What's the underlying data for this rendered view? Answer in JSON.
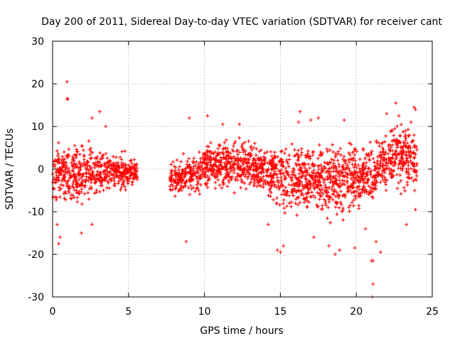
{
  "chart_data": {
    "type": "scatter",
    "title": "Day 200 of 2011, Sidereal Day-to-day VTEC variation (SDTVAR) for receiver cant",
    "xlabel": "GPS time / hours",
    "ylabel": "SDTVAR / TECUs",
    "xlim": [
      0,
      25
    ],
    "ylim": [
      -30,
      30
    ],
    "xticks": [
      0,
      5,
      10,
      15,
      20,
      25
    ],
    "yticks": [
      -30,
      -20,
      -10,
      0,
      10,
      20,
      30
    ],
    "xtick_labels": [
      "0",
      "5",
      "10",
      "15",
      "20",
      "25"
    ],
    "ytick_labels": [
      "-30",
      "-20",
      "-10",
      "0",
      "10",
      "20",
      "30"
    ],
    "grid": true,
    "marker": "+",
    "color": "#ff0000",
    "series": [
      {
        "name": "SDTVAR",
        "data_gap_hours": [
          5.6,
          7.7
        ],
        "envelope": [
          {
            "x": 0.0,
            "low": -10,
            "high": 8,
            "center": -1
          },
          {
            "x": 0.5,
            "low": -9,
            "high": 7,
            "center": -1
          },
          {
            "x": 1.0,
            "low": -9,
            "high": 7,
            "center": -1
          },
          {
            "x": 1.5,
            "low": -9,
            "high": 7,
            "center": -1
          },
          {
            "x": 2.0,
            "low": -9,
            "high": 7,
            "center": -1
          },
          {
            "x": 2.5,
            "low": -8,
            "high": 7,
            "center": -1
          },
          {
            "x": 3.0,
            "low": -7,
            "high": 7,
            "center": -1
          },
          {
            "x": 3.5,
            "low": -7,
            "high": 6,
            "center": -1
          },
          {
            "x": 4.0,
            "low": -6,
            "high": 5,
            "center": -1
          },
          {
            "x": 4.5,
            "low": -6,
            "high": 4,
            "center": -1
          },
          {
            "x": 5.0,
            "low": -5,
            "high": 4,
            "center": -1
          },
          {
            "x": 5.5,
            "low": -4,
            "high": 4,
            "center": -1
          },
          {
            "x": 7.7,
            "low": -7,
            "high": 2,
            "center": -2
          },
          {
            "x": 8.0,
            "low": -7,
            "high": 3,
            "center": -2
          },
          {
            "x": 8.5,
            "low": -7,
            "high": 4,
            "center": -2
          },
          {
            "x": 9.0,
            "low": -7,
            "high": 5,
            "center": -1
          },
          {
            "x": 9.5,
            "low": -6,
            "high": 6,
            "center": -1
          },
          {
            "x": 10.0,
            "low": -6,
            "high": 7,
            "center": 0
          },
          {
            "x": 10.5,
            "low": -5,
            "high": 8,
            "center": 1
          },
          {
            "x": 11.0,
            "low": -5,
            "high": 8,
            "center": 1
          },
          {
            "x": 11.5,
            "low": -5,
            "high": 9,
            "center": 1
          },
          {
            "x": 12.0,
            "low": -5,
            "high": 9,
            "center": 1
          },
          {
            "x": 12.5,
            "low": -5,
            "high": 9,
            "center": 1
          },
          {
            "x": 13.0,
            "low": -6,
            "high": 8,
            "center": 1
          },
          {
            "x": 13.5,
            "low": -7,
            "high": 7,
            "center": 0
          },
          {
            "x": 14.0,
            "low": -8,
            "high": 6,
            "center": 0
          },
          {
            "x": 14.5,
            "low": -11,
            "high": 6,
            "center": -1
          },
          {
            "x": 15.0,
            "low": -15,
            "high": 5,
            "center": -3
          },
          {
            "x": 15.5,
            "low": -13,
            "high": 6,
            "center": -3
          },
          {
            "x": 16.0,
            "low": -11,
            "high": 7,
            "center": -2
          },
          {
            "x": 16.5,
            "low": -11,
            "high": 7,
            "center": -2
          },
          {
            "x": 17.0,
            "low": -11,
            "high": 6,
            "center": -2
          },
          {
            "x": 17.5,
            "low": -12,
            "high": 6,
            "center": -2
          },
          {
            "x": 18.0,
            "low": -14,
            "high": 6,
            "center": -3
          },
          {
            "x": 18.5,
            "low": -16,
            "high": 6,
            "center": -3
          },
          {
            "x": 19.0,
            "low": -13,
            "high": 6,
            "center": -3
          },
          {
            "x": 19.5,
            "low": -12,
            "high": 6,
            "center": -2
          },
          {
            "x": 20.0,
            "low": -11,
            "high": 6,
            "center": -2
          },
          {
            "x": 20.5,
            "low": -10,
            "high": 6,
            "center": -2
          },
          {
            "x": 21.0,
            "low": -12,
            "high": 6,
            "center": -2
          },
          {
            "x": 21.5,
            "low": -10,
            "high": 8,
            "center": 1
          },
          {
            "x": 22.0,
            "low": -8,
            "high": 9,
            "center": 2
          },
          {
            "x": 22.5,
            "low": -7,
            "high": 10,
            "center": 3
          },
          {
            "x": 23.0,
            "low": -7,
            "high": 10,
            "center": 3
          },
          {
            "x": 23.5,
            "low": -7,
            "high": 10,
            "center": 3
          },
          {
            "x": 24.0,
            "low": -7,
            "high": 9,
            "center": 2
          }
        ],
        "outliers": [
          {
            "x": 0.95,
            "y": 20.5
          },
          {
            "x": 0.95,
            "y": 16.5
          },
          {
            "x": 1.0,
            "y": 16.4
          },
          {
            "x": 0.3,
            "y": -13
          },
          {
            "x": 0.4,
            "y": -17.5
          },
          {
            "x": 0.5,
            "y": -16
          },
          {
            "x": 1.9,
            "y": -15
          },
          {
            "x": 2.6,
            "y": 12
          },
          {
            "x": 3.1,
            "y": 13.5
          },
          {
            "x": 2.6,
            "y": -13
          },
          {
            "x": 3.5,
            "y": 10
          },
          {
            "x": 9.0,
            "y": 12
          },
          {
            "x": 8.8,
            "y": -17
          },
          {
            "x": 10.2,
            "y": 12.5
          },
          {
            "x": 11.2,
            "y": 10.5
          },
          {
            "x": 12.3,
            "y": 10.5
          },
          {
            "x": 14.2,
            "y": -13
          },
          {
            "x": 14.8,
            "y": -19
          },
          {
            "x": 15.0,
            "y": -19.5
          },
          {
            "x": 15.2,
            "y": -18
          },
          {
            "x": 16.3,
            "y": 13.5
          },
          {
            "x": 16.2,
            "y": 11
          },
          {
            "x": 17.0,
            "y": 11.5
          },
          {
            "x": 17.5,
            "y": 12
          },
          {
            "x": 17.2,
            "y": -16
          },
          {
            "x": 18.2,
            "y": -18
          },
          {
            "x": 18.6,
            "y": -20
          },
          {
            "x": 18.9,
            "y": -19
          },
          {
            "x": 19.2,
            "y": 11.5
          },
          {
            "x": 19.9,
            "y": -18.5
          },
          {
            "x": 20.6,
            "y": -14
          },
          {
            "x": 21.0,
            "y": -21.5
          },
          {
            "x": 21.1,
            "y": -21.5
          },
          {
            "x": 21.1,
            "y": -27
          },
          {
            "x": 21.05,
            "y": -30
          },
          {
            "x": 21.3,
            "y": -17
          },
          {
            "x": 21.6,
            "y": -19.5
          },
          {
            "x": 22.0,
            "y": 13
          },
          {
            "x": 22.6,
            "y": 15.5
          },
          {
            "x": 22.8,
            "y": 12.5
          },
          {
            "x": 23.3,
            "y": -13
          },
          {
            "x": 23.8,
            "y": 14.5
          },
          {
            "x": 23.9,
            "y": 14
          },
          {
            "x": 23.6,
            "y": 11
          },
          {
            "x": 23.9,
            "y": -9.5
          }
        ]
      }
    ]
  }
}
